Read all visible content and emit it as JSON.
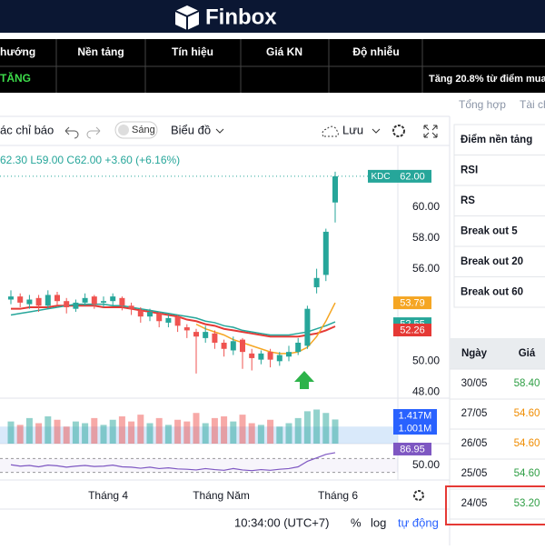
{
  "header": {
    "logo": "Finbox"
  },
  "signal_table": {
    "columns": [
      "hướng",
      "Nền tảng",
      "Tín hiệu",
      "Giá KN",
      "Độ nhiễu"
    ],
    "row": [
      "TĂNG",
      "Tăng 20.8% từ điểm mua"
    ]
  },
  "tabs": [
    "Tổng hợp",
    "Tài ch"
  ],
  "toolbar": {
    "indicators": "ác chỉ báo",
    "theme": "Sáng",
    "chart_type": "Biểu đồ",
    "save": "Lưu"
  },
  "chart_data": {
    "type": "candlestick",
    "symbol": "KDC",
    "legend": "62.30 L59.00 C62.00 +3.60 (+6.16%)",
    "last_label": "62.00",
    "up_color": "#26a69a",
    "down_color": "#ef5350",
    "open": [
      54.0,
      54.2,
      53.7,
      54.1,
      53.6,
      54.3,
      53.9,
      53.4,
      53.8,
      54.2,
      53.8,
      53.9,
      54.1,
      53.6,
      53.3,
      52.9,
      53.1,
      52.5,
      52.9,
      52.2,
      51.9,
      51.5,
      51.8,
      51.2,
      50.7,
      51.4,
      50.5,
      50.1,
      50.6,
      50.0,
      50.3,
      50.6,
      51.0,
      54.8,
      55.6,
      60.3
    ],
    "high": [
      54.6,
      54.4,
      54.3,
      54.3,
      54.6,
      54.5,
      54.1,
      54.0,
      54.4,
      54.3,
      54.2,
      54.4,
      54.2,
      53.8,
      53.5,
      53.4,
      53.2,
      53.0,
      53.0,
      52.4,
      52.1,
      52.3,
      52.0,
      51.4,
      51.6,
      51.5,
      50.8,
      50.7,
      50.8,
      50.6,
      51.0,
      51.5,
      53.6,
      56.0,
      58.6,
      62.3
    ],
    "low": [
      53.7,
      53.5,
      53.4,
      53.2,
      53.4,
      53.6,
      53.1,
      53.2,
      53.6,
      53.4,
      53.5,
      53.6,
      53.3,
      53.0,
      52.5,
      52.6,
      52.2,
      52.2,
      51.9,
      51.5,
      49.2,
      51.2,
      50.8,
      50.3,
      50.4,
      49.5,
      49.4,
      49.8,
      49.6,
      49.7,
      50.0,
      50.4,
      50.8,
      54.4,
      55.2,
      59.0
    ],
    "close": [
      54.2,
      53.8,
      54.0,
      53.6,
      54.3,
      53.9,
      53.5,
      53.8,
      54.1,
      53.7,
      53.9,
      54.2,
      53.6,
      53.4,
      52.9,
      53.2,
      52.6,
      52.8,
      52.3,
      52.0,
      51.6,
      51.9,
      51.2,
      50.8,
      51.3,
      50.6,
      50.2,
      50.5,
      50.1,
      50.4,
      50.6,
      51.2,
      53.4,
      55.4,
      58.4,
      62.0
    ],
    "ylim": [
      47.6,
      64
    ],
    "yticks": [
      {
        "value": 60,
        "label": "60.00"
      },
      {
        "value": 58,
        "label": "58.00"
      },
      {
        "value": 56,
        "label": "56.00"
      },
      {
        "value": 50,
        "label": "50.00"
      },
      {
        "value": 48,
        "label": "48.00"
      }
    ],
    "series": [
      {
        "color": "#e53935",
        "badge": "52.26",
        "values": [
          53.4,
          53.4,
          53.5,
          53.5,
          53.5,
          53.6,
          53.6,
          53.6,
          53.6,
          53.6,
          53.5,
          53.5,
          53.5,
          53.4,
          53.3,
          53.2,
          53.1,
          53.0,
          52.9,
          52.7,
          52.6,
          52.4,
          52.3,
          52.1,
          52.0,
          51.9,
          51.8,
          51.7,
          51.6,
          51.6,
          51.6,
          51.6,
          51.7,
          51.8,
          52.0,
          52.26
        ]
      },
      {
        "color": "#26a69a",
        "badge": "52.55",
        "values": [
          53.0,
          53.1,
          53.2,
          53.3,
          53.4,
          53.5,
          53.6,
          53.7,
          53.7,
          53.7,
          53.7,
          53.6,
          53.6,
          53.5,
          53.4,
          53.3,
          53.2,
          53.1,
          53.0,
          52.9,
          52.8,
          52.6,
          52.5,
          52.3,
          52.2,
          52.0,
          51.9,
          51.8,
          51.7,
          51.7,
          51.7,
          51.8,
          51.9,
          52.1,
          52.3,
          52.55
        ]
      },
      {
        "color": "#f5a623",
        "badge": "53.79",
        "values": [
          null,
          null,
          null,
          null,
          null,
          null,
          null,
          null,
          null,
          null,
          null,
          null,
          null,
          null,
          null,
          null,
          null,
          null,
          null,
          null,
          52.4,
          52.1,
          51.9,
          51.7,
          51.4,
          51.2,
          51.0,
          50.8,
          50.6,
          50.5,
          50.5,
          50.6,
          50.9,
          51.6,
          52.6,
          53.79
        ]
      }
    ],
    "xticks": [
      {
        "value": 10.5,
        "label": "Tháng 4"
      },
      {
        "value": 22.7,
        "label": "Tháng Năm"
      },
      {
        "value": 35.3,
        "label": "Tháng 6"
      }
    ],
    "volume": {
      "values": [
        1.3,
        1.1,
        1.5,
        1.2,
        1.6,
        1.4,
        1.0,
        1.3,
        1.2,
        1.5,
        1.1,
        1.4,
        1.6,
        1.3,
        1.7,
        1.2,
        1.5,
        1.1,
        1.4,
        1.3,
        1.8,
        1.2,
        1.5,
        1.6,
        1.3,
        1.7,
        1.2,
        1.1,
        1.4,
        1.0,
        1.2,
        1.5,
        1.9,
        2.0,
        1.8,
        1.417
      ],
      "ylim": [
        0,
        2.4
      ],
      "last_label": "1.417M",
      "average": 1.001,
      "average_label": "1.001M"
    },
    "rsi": {
      "color": "#7e57c2",
      "values": [
        52,
        48,
        50,
        46,
        51,
        49,
        45,
        48,
        50,
        47,
        48,
        51,
        46,
        45,
        42,
        45,
        41,
        43,
        40,
        39,
        37,
        41,
        38,
        36,
        41,
        37,
        35,
        38,
        36,
        39,
        41,
        46,
        62,
        72,
        82,
        86.95
      ],
      "ylim": [
        0,
        100
      ],
      "bands": [
        70,
        30
      ],
      "ticks": [
        {
          "value": 50,
          "label": "50.00"
        }
      ],
      "last_label": "86.95"
    }
  },
  "criteria": [
    "Điểm nền tảng",
    "RSI",
    "RS",
    "Break out 5",
    "Break out 20",
    "Break out 60"
  ],
  "history": {
    "columns": [
      "Ngày",
      "Giá"
    ],
    "rows": [
      [
        "30/05",
        "58.40"
      ],
      [
        "27/05",
        "54.60"
      ],
      [
        "26/05",
        "54.60"
      ],
      [
        "25/05",
        "54.60"
      ],
      [
        "24/05",
        "53.20"
      ]
    ]
  },
  "footer": {
    "time": "10:34:00 (UTC+7)",
    "percent": "%",
    "log": "log",
    "auto": "tự động"
  }
}
